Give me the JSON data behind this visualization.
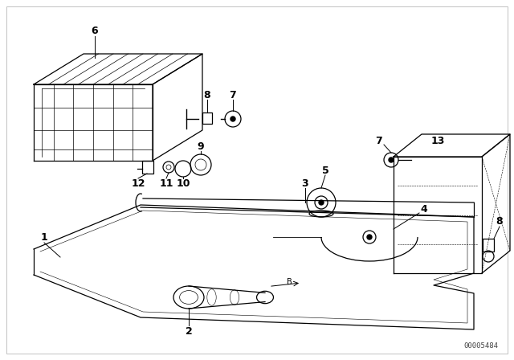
{
  "background_color": "#ffffff",
  "line_color": "#000000",
  "part_number": "00005484",
  "figsize": [
    6.4,
    4.48
  ],
  "dpi": 100,
  "border_color": "#cccccc"
}
